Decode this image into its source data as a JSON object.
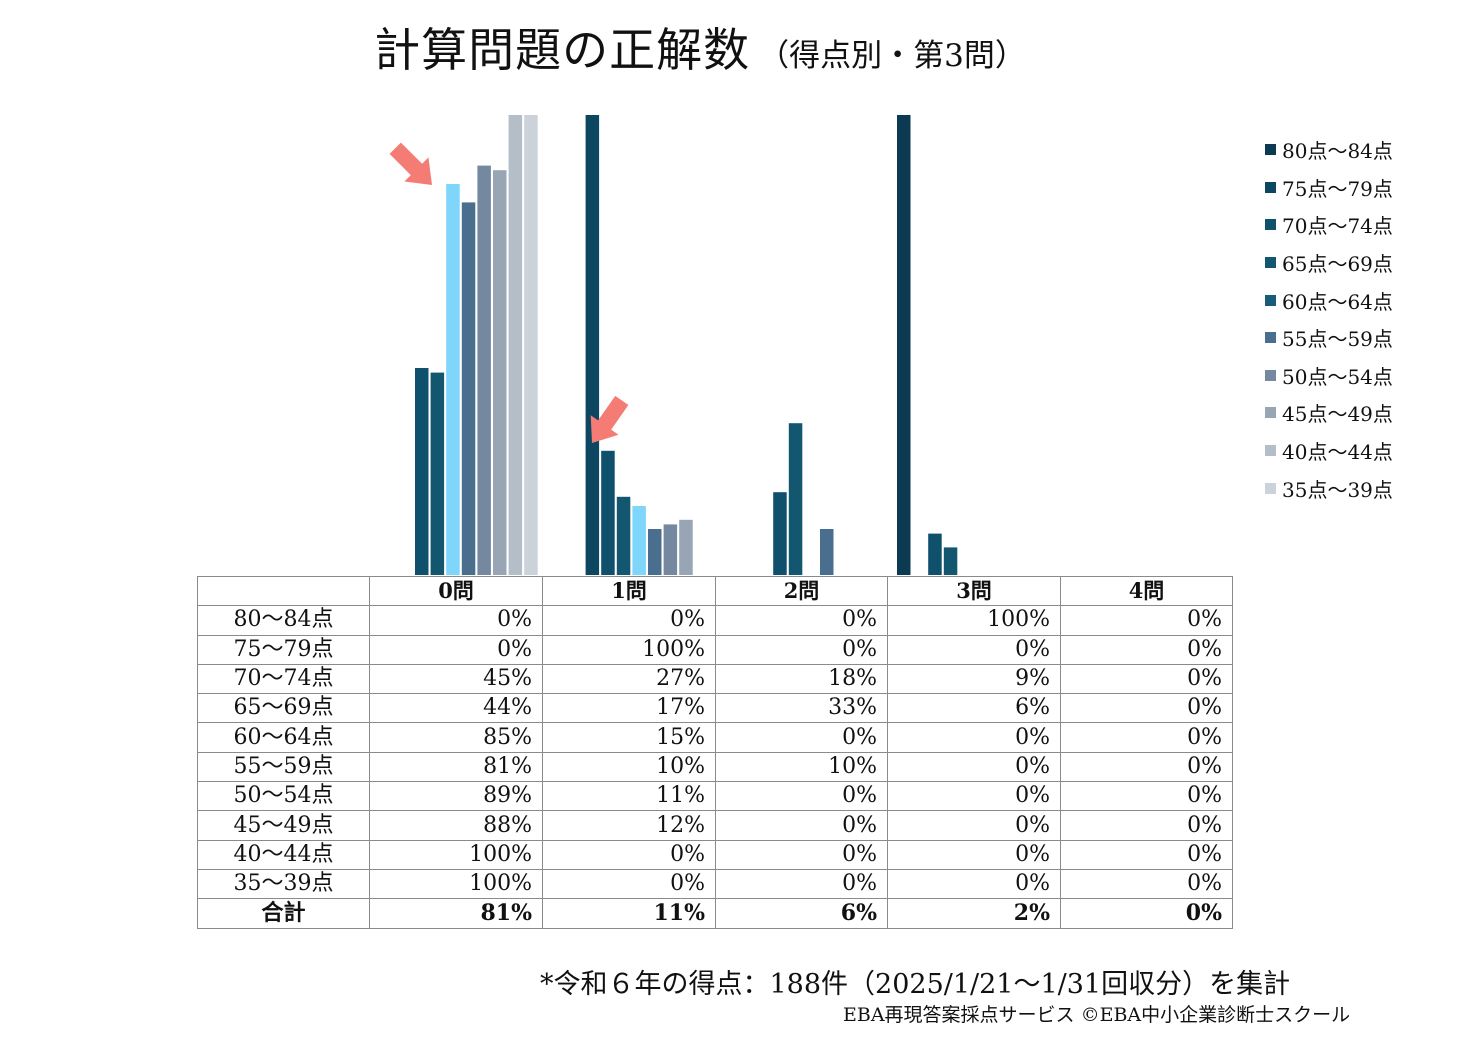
{
  "title": "計算問題の正解数",
  "subtitle": "（得点別・第3問）",
  "note": "*令和６年の得点：188件（2025/1/21～1/31回収分）を集計",
  "credit": "EBA再現答案採点サービス ©EBA中小企業診断士スクール",
  "colors": {
    "highlight": "#7fd6fb",
    "arrow": "#f47c74"
  },
  "chart_data": {
    "type": "bar",
    "categories": [
      "0問",
      "1問",
      "2問",
      "3問",
      "4問"
    ],
    "ylim": [
      0,
      100
    ],
    "legend_position": "right",
    "highlighted_series": "60点～64点",
    "annotations": [
      "arrow-to-60-64-at-0問",
      "arrow-to-60-64-at-1問"
    ],
    "series": [
      {
        "name": "80点～84点",
        "color": "#0b3a52",
        "values": [
          0,
          0,
          0,
          100,
          0
        ]
      },
      {
        "name": "75点～79点",
        "color": "#0d4660",
        "values": [
          0,
          100,
          0,
          0,
          0
        ]
      },
      {
        "name": "70点～74点",
        "color": "#0f506d",
        "values": [
          45,
          27,
          18,
          9,
          0
        ]
      },
      {
        "name": "65点～69点",
        "color": "#135670",
        "values": [
          44,
          17,
          33,
          6,
          0
        ]
      },
      {
        "name": "60点～64点",
        "color": "#185c7a",
        "values": [
          85,
          15,
          0,
          0,
          0
        ]
      },
      {
        "name": "55点～59点",
        "color": "#4a6f8e",
        "values": [
          81,
          10,
          10,
          0,
          0
        ]
      },
      {
        "name": "50点～54点",
        "color": "#7489a0",
        "values": [
          89,
          11,
          0,
          0,
          0
        ]
      },
      {
        "name": "45点～49点",
        "color": "#97a5b5",
        "values": [
          88,
          12,
          0,
          0,
          0
        ]
      },
      {
        "name": "40点～44点",
        "color": "#b4bec9",
        "values": [
          100,
          0,
          0,
          0,
          0
        ]
      },
      {
        "name": "35点～39点",
        "color": "#cbd2d9",
        "values": [
          100,
          0,
          0,
          0,
          0
        ]
      }
    ],
    "table": {
      "rows": [
        {
          "label": "80～84点",
          "cells": [
            "0%",
            "0%",
            "0%",
            "100%",
            "0%"
          ]
        },
        {
          "label": "75～79点",
          "cells": [
            "0%",
            "100%",
            "0%",
            "0%",
            "0%"
          ]
        },
        {
          "label": "70～74点",
          "cells": [
            "45%",
            "27%",
            "18%",
            "9%",
            "0%"
          ]
        },
        {
          "label": "65～69点",
          "cells": [
            "44%",
            "17%",
            "33%",
            "6%",
            "0%"
          ]
        },
        {
          "label": "60～64点",
          "cells": [
            "85%",
            "15%",
            "0%",
            "0%",
            "0%"
          ]
        },
        {
          "label": "55～59点",
          "cells": [
            "81%",
            "10%",
            "10%",
            "0%",
            "0%"
          ]
        },
        {
          "label": "50～54点",
          "cells": [
            "89%",
            "11%",
            "0%",
            "0%",
            "0%"
          ]
        },
        {
          "label": "45～49点",
          "cells": [
            "88%",
            "12%",
            "0%",
            "0%",
            "0%"
          ]
        },
        {
          "label": "40～44点",
          "cells": [
            "100%",
            "0%",
            "0%",
            "0%",
            "0%"
          ]
        },
        {
          "label": "35～39点",
          "cells": [
            "100%",
            "0%",
            "0%",
            "0%",
            "0%"
          ]
        }
      ],
      "total": {
        "label": "合計",
        "cells": [
          "81%",
          "11%",
          "6%",
          "2%",
          "0%"
        ]
      }
    }
  }
}
